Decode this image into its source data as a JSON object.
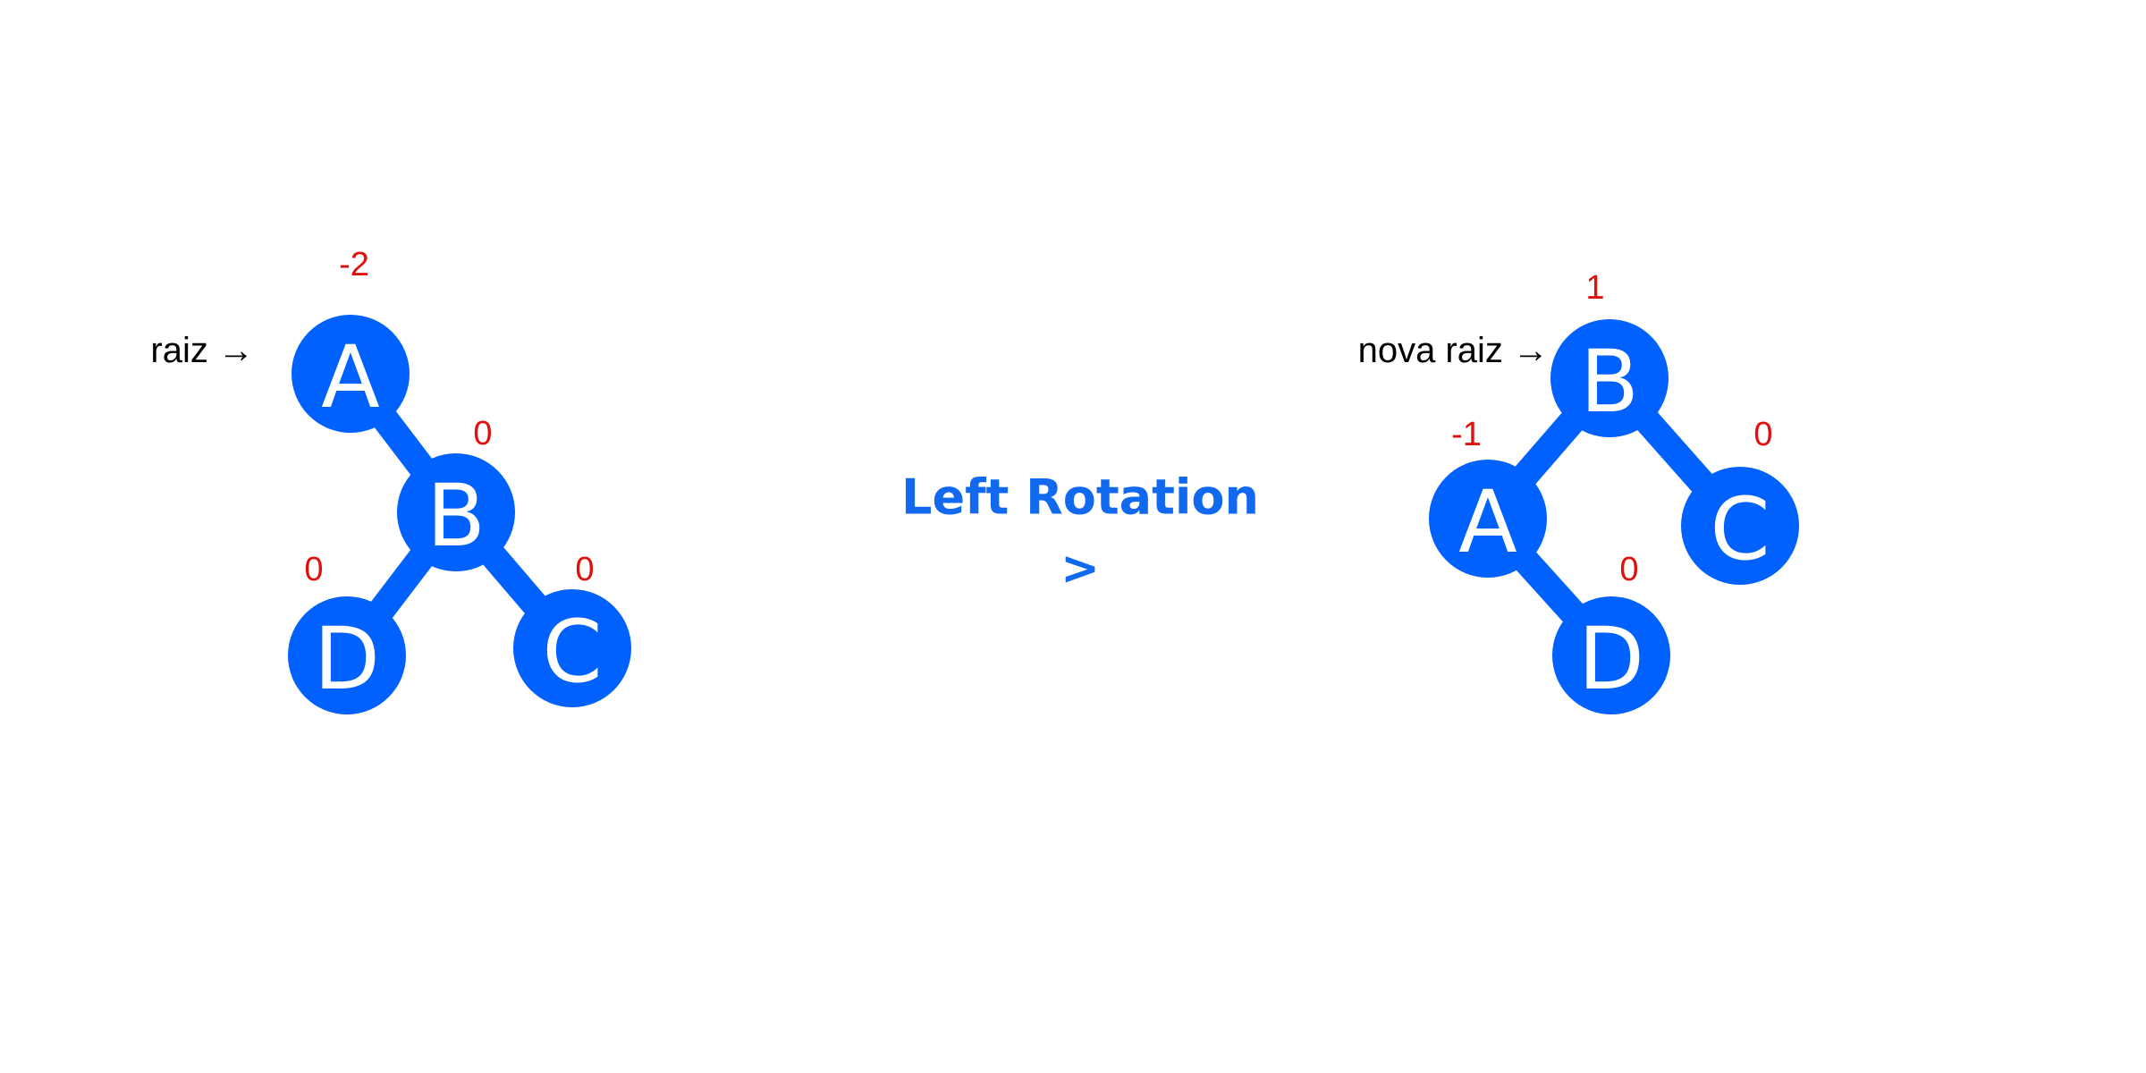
{
  "colors": {
    "node_fill": "#0061fe",
    "edge": "#0061fe",
    "node_text": "#ffffff",
    "balance_text": "#e0100c",
    "pointer_text": "#000000",
    "operation_text": "#1169f0"
  },
  "before": {
    "pointer_label": "raiz →",
    "nodes": {
      "A": {
        "label": "A",
        "balance": "-2"
      },
      "B": {
        "label": "B",
        "balance": "0"
      },
      "D": {
        "label": "D",
        "balance": "0"
      },
      "C": {
        "label": "C",
        "balance": "0"
      }
    },
    "edges": [
      [
        "A",
        "B"
      ],
      [
        "B",
        "D"
      ],
      [
        "B",
        "C"
      ]
    ]
  },
  "operation": {
    "title": "Left Rotation",
    "arrow": ">"
  },
  "after": {
    "pointer_label": "nova raiz →",
    "nodes": {
      "B": {
        "label": "B",
        "balance": "1"
      },
      "A": {
        "label": "A",
        "balance": "-1"
      },
      "C": {
        "label": "C",
        "balance": "0"
      },
      "D": {
        "label": "D",
        "balance": "0"
      }
    },
    "edges": [
      [
        "B",
        "A"
      ],
      [
        "B",
        "C"
      ],
      [
        "A",
        "D"
      ]
    ]
  }
}
